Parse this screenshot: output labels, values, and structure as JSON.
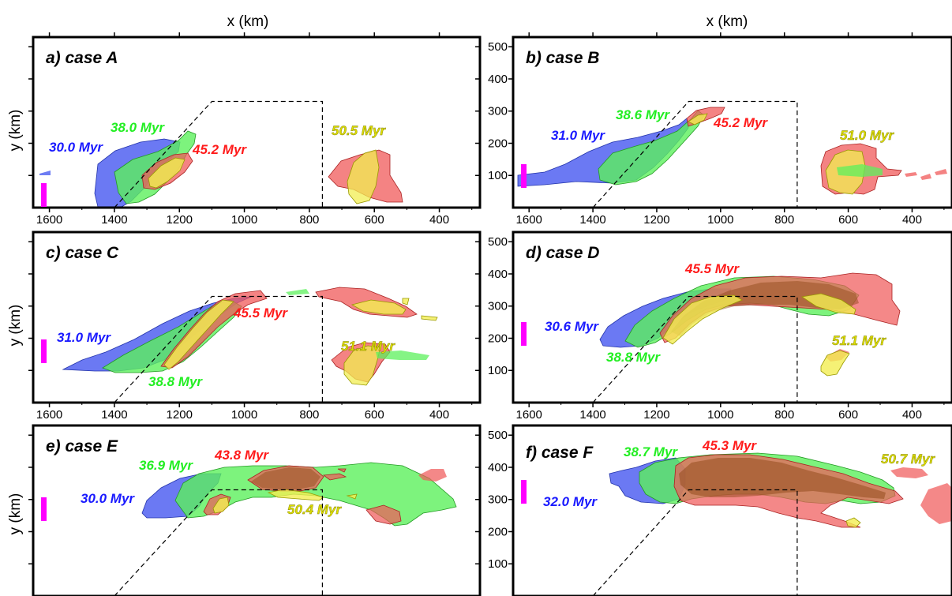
{
  "colors": {
    "blue": "#4a5cf0",
    "green": "#5cf05c",
    "red": "#f05a5a",
    "yellow": "#f2ee52",
    "magenta": "#ff00ff",
    "blue_text": "#1a1aff",
    "green_text": "#22ee22",
    "red_text": "#ff1a1a",
    "yellow_text": "#dddd00"
  },
  "chart_data": {
    "type": "area",
    "x_title": "x (km)",
    "y_title": "y (km)",
    "x_axis_reversed": true,
    "x_ticks": [
      "1600",
      "1400",
      "1200",
      "1000",
      "800",
      "600",
      "400"
    ],
    "y_ticks": [
      "100",
      "200",
      "300",
      "400",
      "500"
    ],
    "xlim": [
      1650,
      275
    ],
    "ylim": [
      0,
      530
    ],
    "boundary_dashed": {
      "x": [
        1400,
        1100,
        760,
        760
      ],
      "y": [
        0,
        330,
        330,
        0
      ]
    },
    "panels": [
      {
        "label": "a) case A",
        "series": [
          {
            "color": "blue",
            "time": "30.0 Myr"
          },
          {
            "color": "green",
            "time": "38.0 Myr"
          },
          {
            "color": "red",
            "time": "45.2 Myr"
          },
          {
            "color": "yellow",
            "time": "50.5 Myr"
          }
        ]
      },
      {
        "label": "b) case B",
        "series": [
          {
            "color": "blue",
            "time": "31.0 Myr"
          },
          {
            "color": "green",
            "time": "38.6 Myr"
          },
          {
            "color": "red",
            "time": "45.2 Myr"
          },
          {
            "color": "yellow",
            "time": "51.0 Myr"
          }
        ]
      },
      {
        "label": "c) case C",
        "series": [
          {
            "color": "blue",
            "time": "31.0 Myr"
          },
          {
            "color": "green",
            "time": "38.8 Myr"
          },
          {
            "color": "red",
            "time": "45.5 Myr"
          },
          {
            "color": "yellow",
            "time": "51.1 Myr"
          }
        ]
      },
      {
        "label": "d) case D",
        "series": [
          {
            "color": "blue",
            "time": "30.6 Myr"
          },
          {
            "color": "green",
            "time": "38.8 Myr"
          },
          {
            "color": "red",
            "time": "45.5 Myr"
          },
          {
            "color": "yellow",
            "time": "51.1 Myr"
          }
        ]
      },
      {
        "label": "e) case E",
        "series": [
          {
            "color": "blue",
            "time": "30.0 Myr"
          },
          {
            "color": "green",
            "time": "36.9 Myr"
          },
          {
            "color": "red",
            "time": "43.8 Myr"
          },
          {
            "color": "yellow",
            "time": "50.4 Myr"
          }
        ]
      },
      {
        "label": "f) case F",
        "series": [
          {
            "color": "blue",
            "time": "32.0 Myr"
          },
          {
            "color": "green",
            "time": "38.7 Myr"
          },
          {
            "color": "red",
            "time": "45.3 Myr"
          },
          {
            "color": "yellow",
            "time": "50.7 Myr"
          }
        ]
      }
    ]
  }
}
